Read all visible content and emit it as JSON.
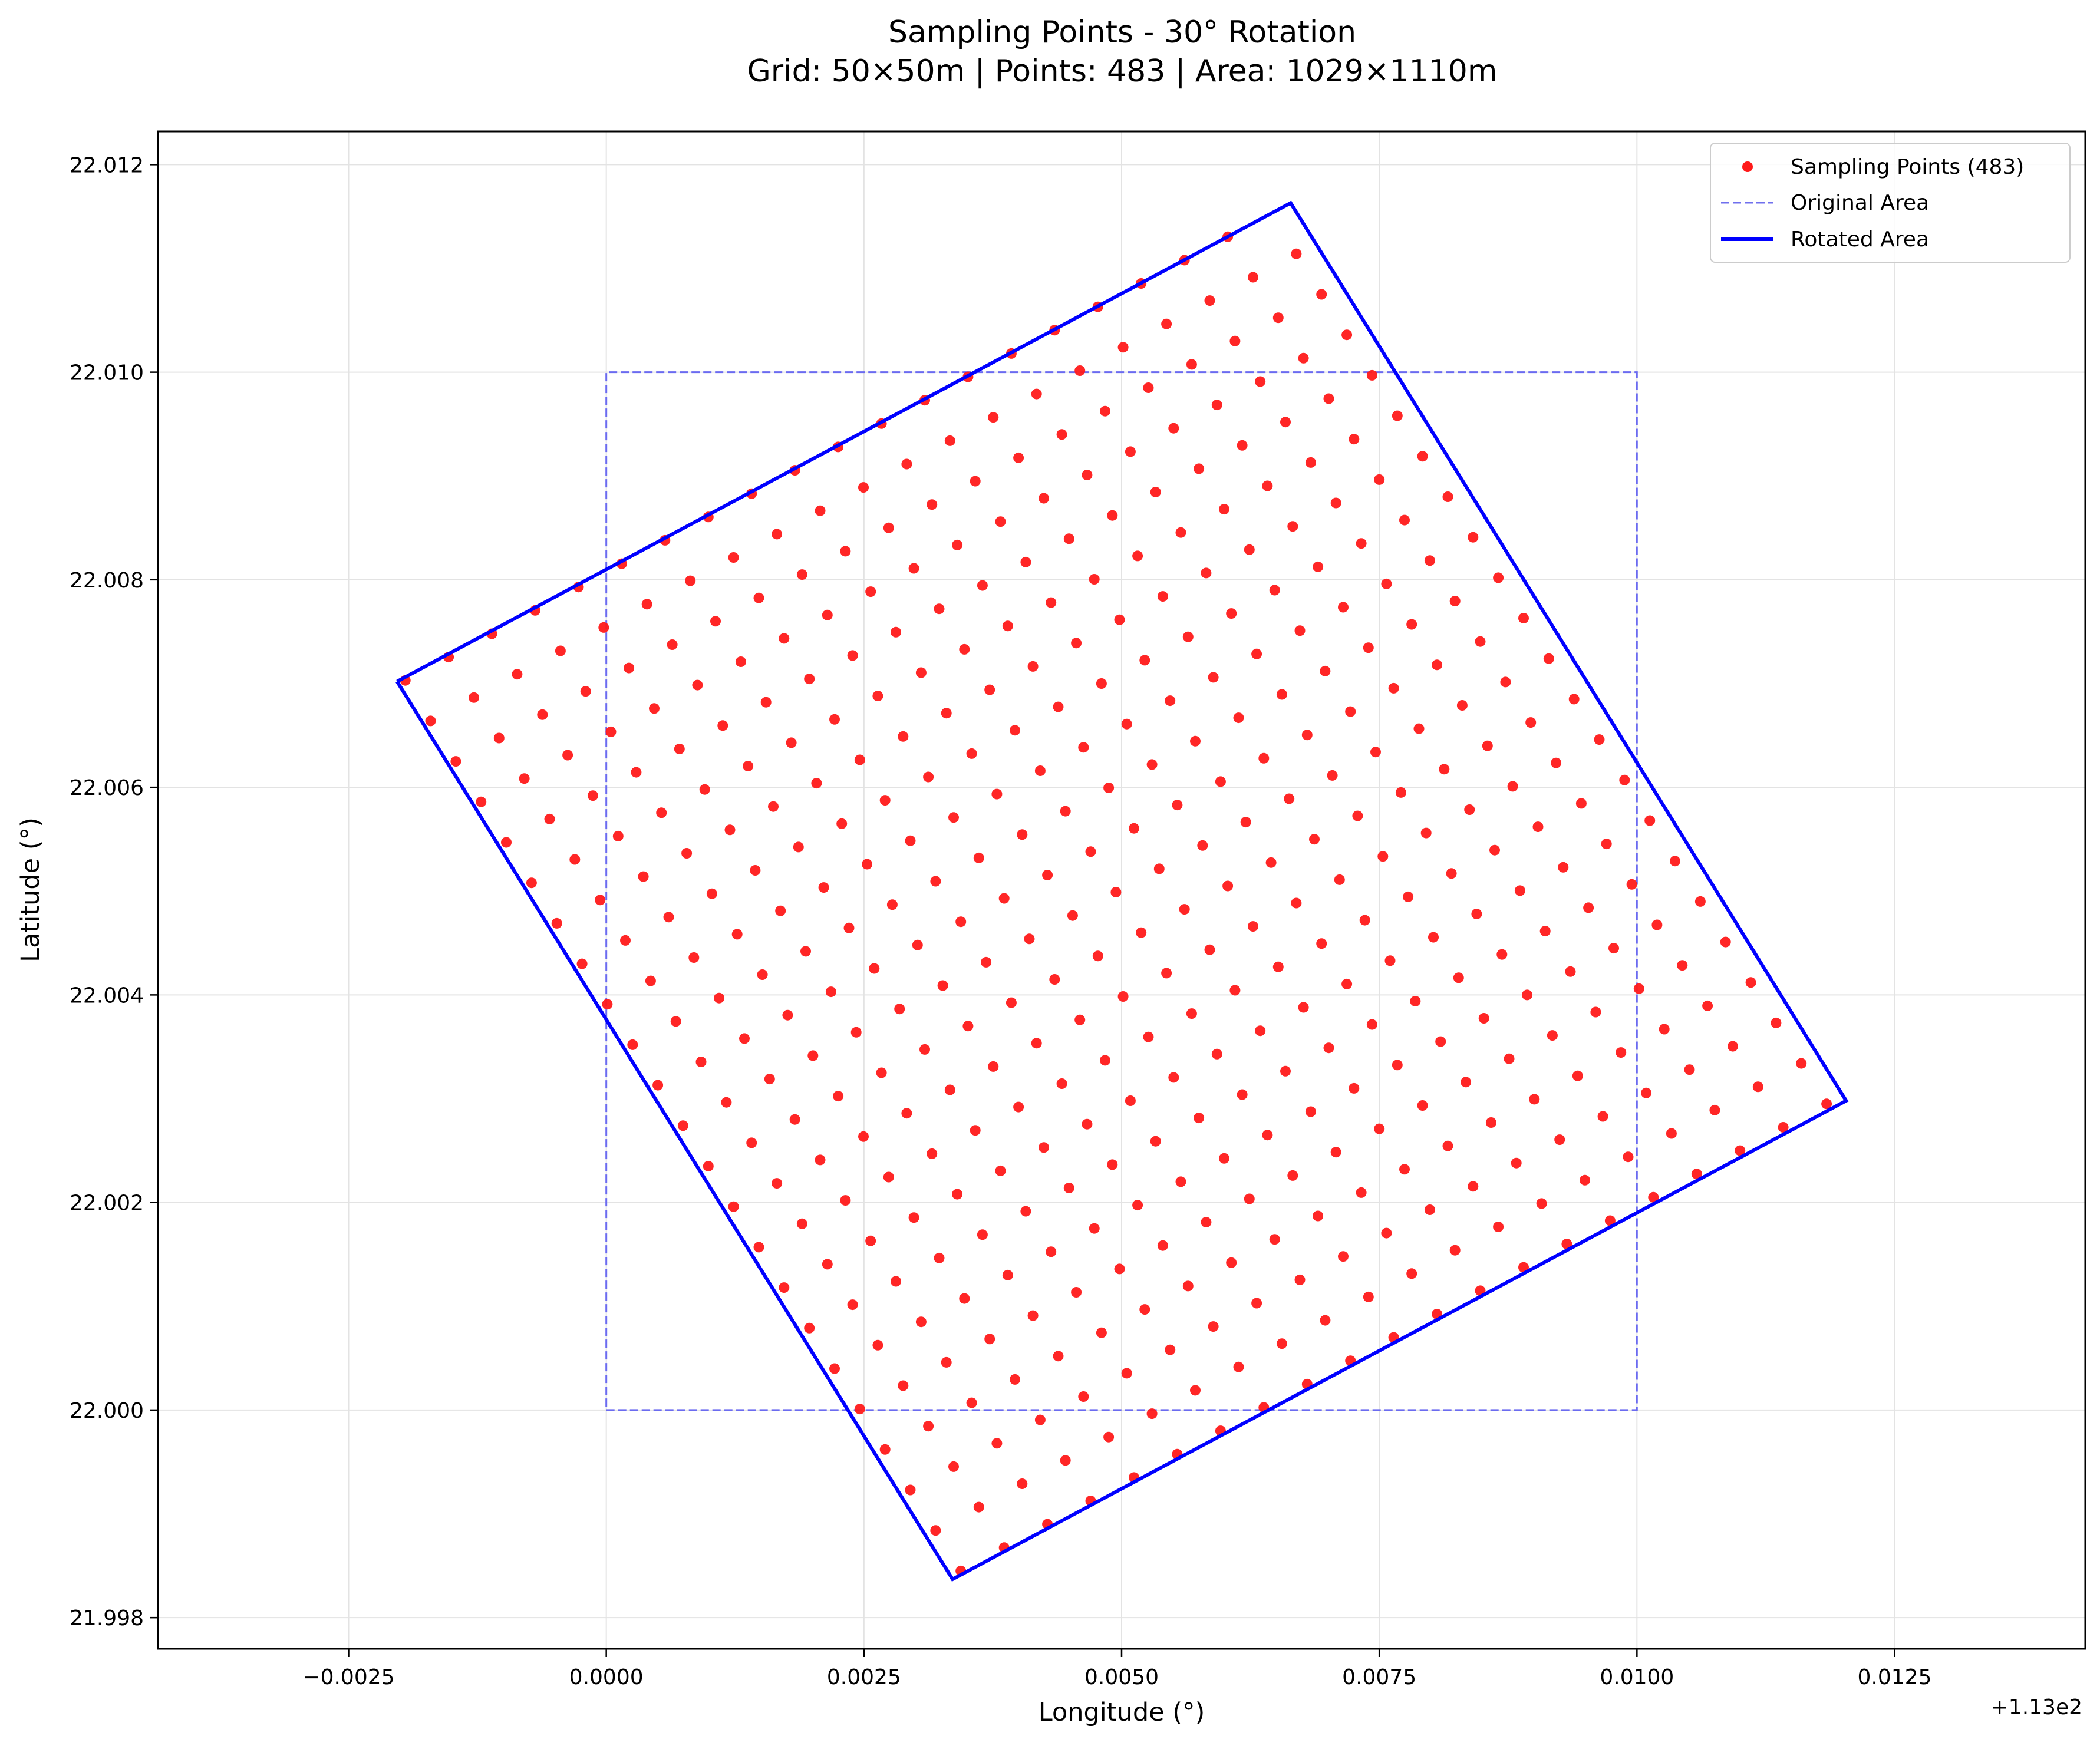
{
  "chart_data": {
    "type": "scatter",
    "title_line1": "Sampling Points - 30° Rotation",
    "title_line2": "Grid: 50×50m | Points: 483 | Area: 1029×1110m",
    "xlabel": "Longitude (°)",
    "ylabel": "Latitude (°)",
    "x_offset_label": "+1.13e2",
    "x_offset": 113.0,
    "xlim": [
      -0.00435,
      0.01435
    ],
    "ylim": [
      21.9977,
      22.01232
    ],
    "xticks": [
      -0.0025,
      0.0,
      0.0025,
      0.005,
      0.0075,
      0.01,
      0.0125
    ],
    "xtick_labels": [
      "−0.0025",
      "0.0000",
      "0.0025",
      "0.0050",
      "0.0075",
      "0.0100",
      "0.0125"
    ],
    "yticks": [
      21.998,
      22.0,
      22.002,
      22.004,
      22.006,
      22.008,
      22.01,
      22.012
    ],
    "ytick_labels": [
      "21.998",
      "22.000",
      "22.002",
      "22.004",
      "22.006",
      "22.008",
      "22.010",
      "22.012"
    ],
    "grid": true,
    "legend_position": "top-right",
    "legend": [
      {
        "label": "Sampling Points (483)",
        "marker": "dot",
        "color": "#ff0000"
      },
      {
        "label": "Original Area",
        "marker": "dashed-line",
        "color": "#7070ee"
      },
      {
        "label": "Rotated Area",
        "marker": "solid-line",
        "color": "#0000ff"
      }
    ],
    "colors": {
      "points": "#ff1a1a",
      "original": "#6b6bf0",
      "rotated": "#0000ff",
      "grid": "#e3e3e3"
    },
    "original_area": {
      "x": [
        0.0,
        0.01,
        0.01,
        0.0,
        0.0
      ],
      "y": [
        22.0,
        22.0,
        22.01,
        22.01,
        22.0
      ]
    },
    "rotated_area": {
      "x": [
        -0.00203,
        0.00664,
        0.01203,
        0.00336,
        -0.00203
      ],
      "y": [
        22.00702,
        22.01163,
        22.00298,
        21.99837,
        22.00702
      ]
    },
    "points": {
      "count": 483,
      "spacing_m": 50,
      "rotation_deg": 30,
      "origin_lon": -0.00195,
      "origin_lat": 22.00703,
      "step_u_lon": 0.00042,
      "step_u_lat": 0.000225,
      "step_v_lon": 0.000245,
      "step_v_lat": -0.00039,
      "n_u": 21,
      "n_v": 23
    }
  }
}
